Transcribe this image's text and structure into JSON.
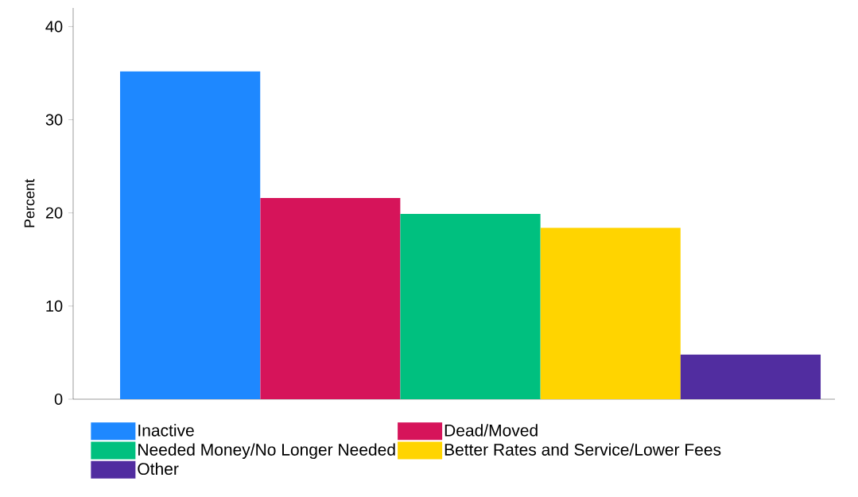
{
  "chart_data": {
    "type": "bar",
    "ylabel": "Percent",
    "categories": [
      null
    ],
    "series": [
      {
        "name": "Inactive",
        "color": "#1e88ff",
        "values": [
          35.2
        ]
      },
      {
        "name": "Dead/Moved",
        "color": "#d6145a",
        "values": [
          21.6
        ]
      },
      {
        "name": "Needed Money/No Longer Needed",
        "color": "#00c07f",
        "values": [
          19.9
        ]
      },
      {
        "name": "Better Rates and Service/Lower Fees",
        "color": "#ffd400",
        "values": [
          18.4
        ]
      },
      {
        "name": "Other",
        "color": "#512da0",
        "values": [
          4.8
        ]
      }
    ],
    "ylim": [
      0,
      42
    ],
    "yticks": [
      0,
      10,
      20,
      30,
      40
    ],
    "legend": "bottom"
  }
}
